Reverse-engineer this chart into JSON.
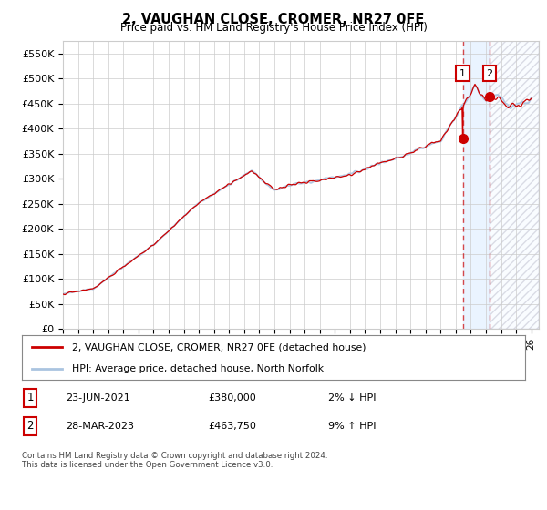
{
  "title": "2, VAUGHAN CLOSE, CROMER, NR27 0FE",
  "subtitle": "Price paid vs. HM Land Registry's House Price Index (HPI)",
  "ylim": [
    0,
    575000
  ],
  "yticks": [
    0,
    50000,
    100000,
    150000,
    200000,
    250000,
    300000,
    350000,
    400000,
    450000,
    500000,
    550000
  ],
  "ytick_labels": [
    "£0",
    "£50K",
    "£100K",
    "£150K",
    "£200K",
    "£250K",
    "£300K",
    "£350K",
    "£400K",
    "£450K",
    "£500K",
    "£550K"
  ],
  "hpi_color": "#aac4e0",
  "price_color": "#cc0000",
  "t1_year": 2021.47,
  "t1_price": 380000,
  "t2_year": 2023.24,
  "t2_price": 463750,
  "transaction1_date": "23-JUN-2021",
  "transaction1_price": 380000,
  "transaction1_pct": "2%",
  "transaction1_dir": "↓",
  "transaction2_date": "28-MAR-2023",
  "transaction2_price": 463750,
  "transaction2_pct": "9%",
  "transaction2_dir": "↑",
  "legend_label1": "2, VAUGHAN CLOSE, CROMER, NR27 0FE (detached house)",
  "legend_label2": "HPI: Average price, detached house, North Norfolk",
  "footer": "Contains HM Land Registry data © Crown copyright and database right 2024.\nThis data is licensed under the Open Government Licence v3.0.",
  "background_color": "#ffffff",
  "grid_color": "#cccccc",
  "shade_between_color": "#ddeeff",
  "shade_after_color": "#e8e8f0"
}
